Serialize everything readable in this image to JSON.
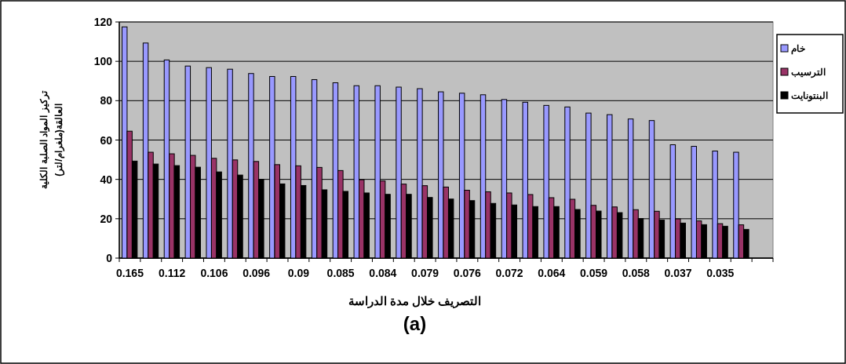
{
  "chart_data": {
    "type": "bar",
    "categories": [
      "0.165",
      null,
      "0.112",
      null,
      "0.106",
      null,
      "0.096",
      null,
      "0.09",
      null,
      "0.085",
      null,
      "0.084",
      null,
      "0.079",
      null,
      "0.076",
      null,
      "0.072",
      null,
      "0.064",
      null,
      "0.059",
      null,
      "0.058",
      null,
      "0.037",
      null,
      "0.035",
      null,
      null
    ],
    "series": [
      {
        "name": "خام",
        "color": "#9999ff",
        "values": [
          117.5,
          109.3,
          100.7,
          97.6,
          96.8,
          96,
          93.8,
          92.3,
          92.3,
          90.7,
          89.1,
          87.6,
          87.6,
          86.9,
          86.1,
          84.5,
          83.8,
          83,
          80.6,
          79.2,
          77.6,
          76.8,
          73.7,
          72.9,
          70.7,
          69.9,
          57.6,
          56.8,
          54.4,
          53.8,
          null
        ]
      },
      {
        "name": "الترسيب",
        "color": "#993366",
        "values": [
          64.5,
          53.8,
          53,
          52.2,
          50.7,
          49.9,
          49.1,
          47.5,
          46.9,
          46.1,
          44.5,
          39.8,
          39.2,
          37.6,
          36.8,
          36.1,
          34.5,
          33.7,
          33.1,
          32.3,
          30.7,
          29.9,
          26.8,
          26,
          24.6,
          23.8,
          19.9,
          18.9,
          17.5,
          16.9,
          null
        ]
      },
      {
        "name": "البنتونايت",
        "color": "#000000",
        "values": [
          49.3,
          47.8,
          47,
          46.2,
          43.8,
          42.2,
          40,
          37.7,
          36.9,
          34.7,
          33.9,
          33.1,
          32.4,
          32.4,
          30.8,
          30,
          29.2,
          27.8,
          27,
          26.2,
          26.2,
          24.7,
          23.9,
          23.1,
          20.1,
          19.3,
          17.8,
          17,
          16.2,
          14.6,
          null
        ]
      }
    ],
    "ylim": [
      0,
      120
    ],
    "yticks": [
      0,
      20,
      40,
      60,
      80,
      100,
      120
    ],
    "grid": "y",
    "legend": "right",
    "xlabel": "التصريف خلال مدة الدراسة",
    "ylabel": "تركيز المواد الصلبة الكلية\nالعالقة(ملغرام/لتر)",
    "annotations": [
      "(a)"
    ]
  }
}
